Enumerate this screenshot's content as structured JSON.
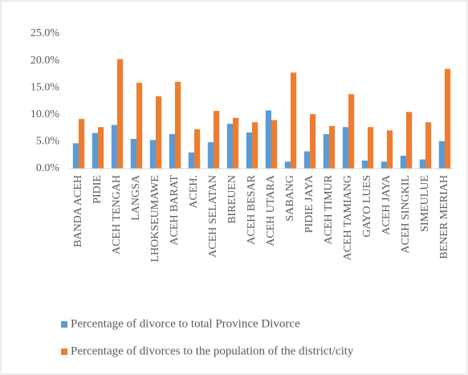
{
  "chart_data": {
    "type": "bar",
    "categories": [
      "BANDA ACEH",
      "PIDIE",
      "ACEH TENGAH",
      "LANGSA",
      "LHOKSEUMAWE",
      "ACEH BARAT",
      "ACEH.",
      "ACEH SELATAN",
      "BIREUEN",
      "ACEH BESAR",
      "ACEH UTARA",
      "SABANG",
      "PIDIE JAYA",
      "ACEH TIMUR",
      "ACEH TAMIANG",
      "GAYO LUES",
      "ACEH JAYA",
      "ACEH SINGKIL",
      "SIMEULUE",
      "BENER MERIAH"
    ],
    "series": [
      {
        "name": "Percentage of divorce to total Province Divorce",
        "color": "#5b9bd5",
        "values": [
          4.7,
          6.6,
          8.1,
          5.5,
          5.3,
          6.4,
          3.0,
          4.9,
          8.3,
          6.7,
          10.8,
          1.3,
          3.2,
          6.4,
          7.7,
          1.5,
          1.3,
          2.4,
          1.7,
          5.1
        ]
      },
      {
        "name": "Percentage of divorces to the population of the district/city",
        "color": "#ed7d31",
        "values": [
          9.2,
          7.7,
          20.3,
          15.9,
          13.4,
          16.1,
          7.3,
          10.7,
          9.4,
          8.6,
          9.0,
          17.8,
          10.1,
          7.9,
          13.8,
          7.7,
          7.1,
          10.5,
          8.6,
          18.5
        ]
      }
    ],
    "ylim": [
      0,
      25
    ],
    "yticks": [
      {
        "value": 0,
        "label": "0.0%"
      },
      {
        "value": 5,
        "label": "5.0%"
      },
      {
        "value": 10,
        "label": "10.0%"
      },
      {
        "value": 15,
        "label": "15.0%"
      },
      {
        "value": 20,
        "label": "20.0%"
      },
      {
        "value": 25,
        "label": "25.0%"
      }
    ],
    "grid": false,
    "legend": "bottom"
  }
}
